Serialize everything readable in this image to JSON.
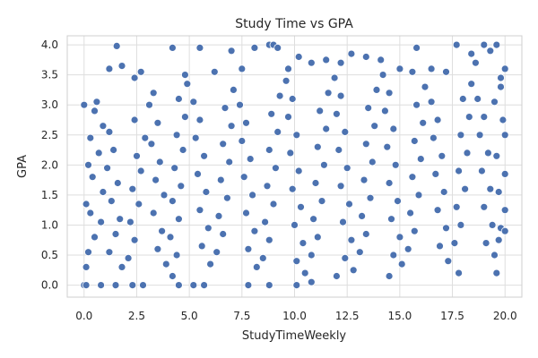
{
  "chart_data": {
    "type": "scatter",
    "title": "Study Time vs GPA",
    "xlabel": "StudyTimeWeekly",
    "ylabel": "GPA",
    "xlim": [
      -0.8,
      20.8
    ],
    "ylim": [
      -0.2,
      4.15
    ],
    "xticks": [
      0.0,
      2.5,
      5.0,
      7.5,
      10.0,
      12.5,
      15.0,
      17.5,
      20.0
    ],
    "xtick_labels": [
      "0.0",
      "2.5",
      "5.0",
      "7.5",
      "10.0",
      "12.5",
      "15.0",
      "17.5",
      "20.0"
    ],
    "yticks": [
      0.0,
      0.5,
      1.0,
      1.5,
      2.0,
      2.5,
      3.0,
      3.5,
      4.0
    ],
    "ytick_labels": [
      "0.0",
      "0.5",
      "1.0",
      "1.5",
      "2.0",
      "2.5",
      "3.0",
      "3.5",
      "4.0"
    ],
    "grid": true,
    "colors": {
      "point": "#4C72B0",
      "point_edge": "#ffffff",
      "grid": "#dedede",
      "frame": "#cfcfcf",
      "background": "#ffffff"
    },
    "points": [
      [
        1.55,
        3.98
      ],
      [
        0.0,
        3.0
      ],
      [
        0.6,
        3.05
      ],
      [
        1.2,
        3.6
      ],
      [
        1.8,
        3.65
      ],
      [
        2.4,
        3.45
      ],
      [
        2.7,
        3.55
      ],
      [
        3.3,
        3.2
      ],
      [
        4.2,
        3.95
      ],
      [
        4.8,
        3.5
      ],
      [
        5.5,
        3.95
      ],
      [
        6.2,
        3.55
      ],
      [
        7.0,
        3.9
      ],
      [
        7.5,
        3.6
      ],
      [
        8.1,
        3.95
      ],
      [
        8.8,
        4.0
      ],
      [
        9.0,
        4.0
      ],
      [
        9.2,
        3.95
      ],
      [
        9.7,
        3.6
      ],
      [
        10.2,
        3.8
      ],
      [
        10.8,
        3.7
      ],
      [
        11.5,
        3.75
      ],
      [
        12.2,
        3.7
      ],
      [
        12.7,
        3.85
      ],
      [
        13.4,
        3.8
      ],
      [
        14.1,
        3.75
      ],
      [
        15.0,
        3.6
      ],
      [
        15.6,
        3.55
      ],
      [
        15.8,
        3.95
      ],
      [
        16.5,
        3.6
      ],
      [
        17.2,
        3.55
      ],
      [
        17.7,
        4.0
      ],
      [
        18.4,
        3.85
      ],
      [
        18.6,
        3.7
      ],
      [
        19.0,
        4.0
      ],
      [
        19.3,
        3.9
      ],
      [
        19.6,
        4.0
      ],
      [
        20.0,
        3.6
      ],
      [
        19.8,
        3.3
      ],
      [
        20.0,
        2.5
      ],
      [
        0.0,
        0.0
      ],
      [
        0.1,
        0.0
      ],
      [
        0.8,
        0.0
      ],
      [
        1.5,
        0.0
      ],
      [
        2.3,
        0.0
      ],
      [
        2.8,
        0.0
      ],
      [
        4.5,
        0.0
      ],
      [
        5.2,
        0.0
      ],
      [
        5.7,
        0.0
      ],
      [
        7.8,
        0.0
      ],
      [
        8.8,
        0.0
      ],
      [
        10.1,
        0.0
      ],
      [
        10.8,
        0.05
      ],
      [
        12.0,
        0.15
      ],
      [
        14.5,
        0.15
      ],
      [
        17.8,
        0.2
      ],
      [
        19.6,
        0.2
      ],
      [
        0.1,
        0.3
      ],
      [
        0.2,
        0.55
      ],
      [
        0.5,
        0.8
      ],
      [
        0.8,
        1.05
      ],
      [
        0.3,
        1.2
      ],
      [
        0.1,
        1.35
      ],
      [
        0.9,
        1.55
      ],
      [
        0.4,
        1.8
      ],
      [
        0.2,
        2.0
      ],
      [
        0.7,
        2.2
      ],
      [
        0.3,
        2.45
      ],
      [
        0.9,
        2.65
      ],
      [
        0.5,
        2.9
      ],
      [
        1.2,
        2.55
      ],
      [
        1.4,
        2.25
      ],
      [
        1.1,
        1.95
      ],
      [
        1.6,
        1.7
      ],
      [
        1.3,
        1.4
      ],
      [
        1.7,
        1.1
      ],
      [
        1.5,
        0.85
      ],
      [
        1.2,
        0.55
      ],
      [
        1.8,
        0.3
      ],
      [
        2.1,
        0.45
      ],
      [
        2.4,
        0.75
      ],
      [
        2.2,
        1.05
      ],
      [
        2.6,
        1.35
      ],
      [
        2.3,
        1.6
      ],
      [
        2.7,
        1.9
      ],
      [
        2.5,
        2.15
      ],
      [
        2.9,
        2.45
      ],
      [
        2.4,
        2.75
      ],
      [
        3.1,
        3.0
      ],
      [
        3.5,
        2.7
      ],
      [
        3.2,
        2.35
      ],
      [
        3.6,
        2.05
      ],
      [
        3.4,
        1.75
      ],
      [
        3.8,
        1.5
      ],
      [
        3.3,
        1.2
      ],
      [
        3.7,
        0.9
      ],
      [
        3.5,
        0.6
      ],
      [
        3.9,
        0.35
      ],
      [
        4.2,
        0.15
      ],
      [
        4.4,
        0.5
      ],
      [
        4.1,
        0.8
      ],
      [
        4.5,
        1.1
      ],
      [
        4.2,
        1.4
      ],
      [
        4.6,
        1.65
      ],
      [
        4.3,
        1.95
      ],
      [
        4.7,
        2.25
      ],
      [
        4.4,
        2.5
      ],
      [
        4.8,
        2.8
      ],
      [
        4.5,
        3.1
      ],
      [
        4.9,
        3.35
      ],
      [
        5.2,
        3.05
      ],
      [
        5.5,
        2.75
      ],
      [
        5.3,
        2.45
      ],
      [
        5.7,
        2.15
      ],
      [
        5.4,
        1.85
      ],
      [
        5.8,
        1.55
      ],
      [
        5.5,
        1.25
      ],
      [
        5.9,
        0.95
      ],
      [
        5.6,
        0.65
      ],
      [
        6.0,
        0.35
      ],
      [
        6.3,
        0.55
      ],
      [
        6.6,
        0.85
      ],
      [
        6.4,
        1.15
      ],
      [
        6.8,
        1.45
      ],
      [
        6.5,
        1.75
      ],
      [
        6.9,
        2.05
      ],
      [
        6.6,
        2.35
      ],
      [
        7.0,
        2.65
      ],
      [
        6.7,
        2.95
      ],
      [
        7.1,
        3.25
      ],
      [
        7.4,
        3.0
      ],
      [
        7.7,
        2.7
      ],
      [
        7.5,
        2.4
      ],
      [
        7.9,
        2.1
      ],
      [
        7.6,
        1.8
      ],
      [
        8.0,
        1.5
      ],
      [
        7.7,
        1.2
      ],
      [
        8.1,
        0.9
      ],
      [
        7.8,
        0.6
      ],
      [
        8.2,
        0.3
      ],
      [
        8.5,
        0.45
      ],
      [
        8.8,
        0.75
      ],
      [
        8.6,
        1.05
      ],
      [
        9.0,
        1.35
      ],
      [
        8.7,
        1.65
      ],
      [
        9.1,
        1.95
      ],
      [
        8.8,
        2.25
      ],
      [
        9.2,
        2.55
      ],
      [
        8.9,
        2.85
      ],
      [
        9.3,
        3.15
      ],
      [
        9.6,
        3.4
      ],
      [
        9.9,
        3.1
      ],
      [
        9.7,
        2.8
      ],
      [
        10.1,
        2.5
      ],
      [
        9.8,
        2.2
      ],
      [
        10.2,
        1.9
      ],
      [
        9.9,
        1.6
      ],
      [
        10.3,
        1.3
      ],
      [
        10.0,
        1.0
      ],
      [
        10.4,
        0.7
      ],
      [
        10.1,
        0.4
      ],
      [
        10.5,
        0.2
      ],
      [
        10.8,
        0.5
      ],
      [
        11.1,
        0.8
      ],
      [
        10.9,
        1.1
      ],
      [
        11.3,
        1.4
      ],
      [
        11.0,
        1.7
      ],
      [
        11.4,
        2.0
      ],
      [
        11.1,
        2.3
      ],
      [
        11.5,
        2.6
      ],
      [
        11.2,
        2.9
      ],
      [
        11.6,
        3.2
      ],
      [
        11.9,
        3.45
      ],
      [
        12.2,
        3.15
      ],
      [
        12.0,
        2.85
      ],
      [
        12.4,
        2.55
      ],
      [
        12.1,
        2.25
      ],
      [
        12.5,
        1.95
      ],
      [
        12.2,
        1.65
      ],
      [
        12.6,
        1.35
      ],
      [
        12.3,
        1.05
      ],
      [
        12.7,
        0.75
      ],
      [
        12.4,
        0.45
      ],
      [
        12.8,
        0.25
      ],
      [
        13.1,
        0.55
      ],
      [
        13.4,
        0.85
      ],
      [
        13.2,
        1.15
      ],
      [
        13.6,
        1.45
      ],
      [
        13.3,
        1.75
      ],
      [
        13.7,
        2.05
      ],
      [
        13.4,
        2.35
      ],
      [
        13.8,
        2.65
      ],
      [
        13.5,
        2.95
      ],
      [
        13.9,
        3.25
      ],
      [
        14.2,
        3.5
      ],
      [
        14.5,
        3.2
      ],
      [
        14.3,
        2.9
      ],
      [
        14.7,
        2.6
      ],
      [
        14.4,
        2.3
      ],
      [
        14.8,
        2.0
      ],
      [
        14.5,
        1.7
      ],
      [
        14.9,
        1.4
      ],
      [
        14.6,
        1.1
      ],
      [
        15.0,
        0.8
      ],
      [
        14.7,
        0.5
      ],
      [
        15.1,
        0.35
      ],
      [
        15.4,
        0.6
      ],
      [
        15.7,
        0.9
      ],
      [
        15.5,
        1.2
      ],
      [
        15.9,
        1.5
      ],
      [
        15.6,
        1.8
      ],
      [
        16.0,
        2.1
      ],
      [
        15.7,
        2.4
      ],
      [
        16.1,
        2.7
      ],
      [
        15.8,
        3.0
      ],
      [
        16.2,
        3.3
      ],
      [
        16.5,
        3.05
      ],
      [
        16.8,
        2.75
      ],
      [
        16.6,
        2.45
      ],
      [
        17.0,
        2.15
      ],
      [
        16.7,
        1.85
      ],
      [
        17.1,
        1.55
      ],
      [
        16.8,
        1.25
      ],
      [
        17.2,
        0.95
      ],
      [
        16.9,
        0.65
      ],
      [
        17.3,
        0.4
      ],
      [
        17.6,
        0.7
      ],
      [
        17.9,
        1.0
      ],
      [
        17.7,
        1.3
      ],
      [
        18.1,
        1.6
      ],
      [
        17.8,
        1.9
      ],
      [
        18.2,
        2.2
      ],
      [
        17.9,
        2.5
      ],
      [
        18.3,
        2.8
      ],
      [
        18.0,
        3.1
      ],
      [
        18.4,
        3.35
      ],
      [
        18.7,
        3.1
      ],
      [
        19.0,
        2.8
      ],
      [
        18.8,
        2.5
      ],
      [
        19.2,
        2.2
      ],
      [
        18.9,
        1.9
      ],
      [
        19.3,
        1.6
      ],
      [
        19.0,
        1.3
      ],
      [
        19.4,
        1.0
      ],
      [
        19.1,
        0.7
      ],
      [
        19.5,
        0.5
      ],
      [
        19.8,
        0.95
      ],
      [
        20.0,
        1.25
      ],
      [
        19.7,
        1.55
      ],
      [
        20.0,
        1.85
      ],
      [
        19.6,
        2.15
      ],
      [
        19.9,
        2.75
      ],
      [
        19.5,
        3.05
      ],
      [
        19.8,
        3.45
      ],
      [
        20.0,
        0.9
      ],
      [
        19.7,
        0.75
      ]
    ]
  }
}
